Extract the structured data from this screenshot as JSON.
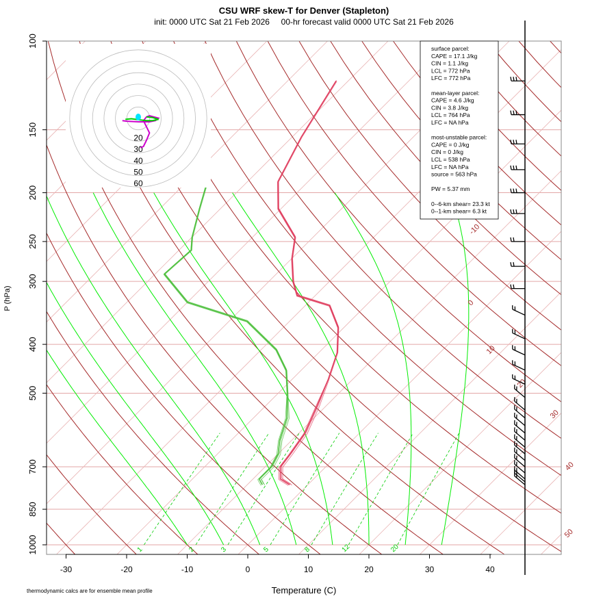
{
  "title": "CSU WRF skew-T for Denver (Stapleton)",
  "subtitle": "init: 0000 UTC Sat 21 Feb 2026     00-hr forecast valid 0000 UTC Sat 21 Feb 2026",
  "xlabel": "Temperature (C)",
  "ylabel": "P (hPa)",
  "footnote": "thermodynamic calcs are for ensemble mean profile",
  "colors": {
    "temperature": "#e04060",
    "dewpoint": "#50c040",
    "isotherm": "#c44444",
    "dry_adiabat": "#a52a2a",
    "moist_adiabat": "#00ee00",
    "mixing_ratio": "#00cc00",
    "hodo_ring": "#bbbbbb",
    "hodo_line": "#cc00cc",
    "hodo_line2": "#00cc00",
    "hodo_mean": "#00e5ff"
  },
  "stats": [
    "surface parcel:",
    "CAPE = 17.1 J/kg",
    "CIN = 1.1 J/kg",
    "LCL = 772 hPa",
    "LFC = 772 hPa",
    "",
    "mean-layer parcel:",
    "CAPE = 4.6 J/kg",
    "CIN = 3.8 J/kg",
    "LCL = 764 hPa",
    "LFC = NA hPa",
    "",
    "most-unstable parcel:",
    "CAPE = 0 J/kg",
    "CIN = 0 J/kg",
    "LCL = 538 hPa",
    "LFC = NA hPa",
    "source = 563 hPa",
    "",
    "PW =  5.37 mm",
    "",
    "0--6-km shear= 23.3 kt",
    "0--1-km shear= 6.3 kt"
  ],
  "chart_data": {
    "type": "line",
    "x_ticks": [
      -30,
      -20,
      -10,
      0,
      10,
      20,
      30,
      40
    ],
    "y_ticks": [
      100,
      150,
      200,
      250,
      300,
      400,
      500,
      700,
      850,
      1000
    ],
    "isotherm_labels": [
      "-10",
      "0",
      "10",
      "20",
      "30",
      "40",
      "50"
    ],
    "mixing_ratio_labels": [
      "1",
      "2",
      "3",
      "5",
      "8",
      "12",
      "20"
    ],
    "mixing_ratio_values": [
      1,
      2,
      3,
      5,
      8,
      12,
      20
    ],
    "isotherm_label_values": [
      -10,
      0,
      10,
      20,
      30,
      40,
      50
    ],
    "hodograph_ring_labels": [
      "20",
      "30",
      "40",
      "50",
      "60"
    ],
    "x_range_at_1000hPa": [
      -33,
      51
    ],
    "p_range_hPa": [
      100,
      1000
    ],
    "series": [
      {
        "name": "temperature",
        "points": [
          [
            -3.0,
            760
          ],
          [
            -5.5,
            740
          ],
          [
            -7.5,
            700
          ],
          [
            -8.0,
            660
          ],
          [
            -9.0,
            600
          ],
          [
            -11.5,
            530
          ],
          [
            -14.0,
            470
          ],
          [
            -17.0,
            415
          ],
          [
            -21.0,
            370
          ],
          [
            -26.0,
            335
          ],
          [
            -33.0,
            320
          ],
          [
            -36.0,
            300
          ],
          [
            -40.0,
            270
          ],
          [
            -43.0,
            245
          ],
          [
            -50.5,
            215
          ],
          [
            -55.0,
            190
          ],
          [
            -58.5,
            155
          ],
          [
            -62.0,
            120
          ]
        ]
      },
      {
        "name": "dewpoint",
        "points": [
          [
            -7.5,
            760
          ],
          [
            -9.0,
            740
          ],
          [
            -9.0,
            700
          ],
          [
            -10.0,
            660
          ],
          [
            -12.0,
            620
          ],
          [
            -14.5,
            560
          ],
          [
            -18.5,
            500
          ],
          [
            -22.5,
            450
          ],
          [
            -27.5,
            410
          ],
          [
            -37.0,
            360
          ],
          [
            -50.0,
            330
          ],
          [
            -58.5,
            290
          ],
          [
            -58.0,
            260
          ],
          [
            -60.0,
            245
          ],
          [
            -63.5,
            215
          ],
          [
            -66.0,
            195
          ]
        ]
      }
    ],
    "wind_barb_levels_hPa": [
      120,
      140,
      160,
      180,
      200,
      220,
      250,
      280,
      310,
      350,
      390,
      420,
      450,
      480,
      510,
      540,
      560,
      580,
      600,
      620,
      640,
      660,
      680,
      700,
      720,
      740,
      750,
      760
    ]
  }
}
